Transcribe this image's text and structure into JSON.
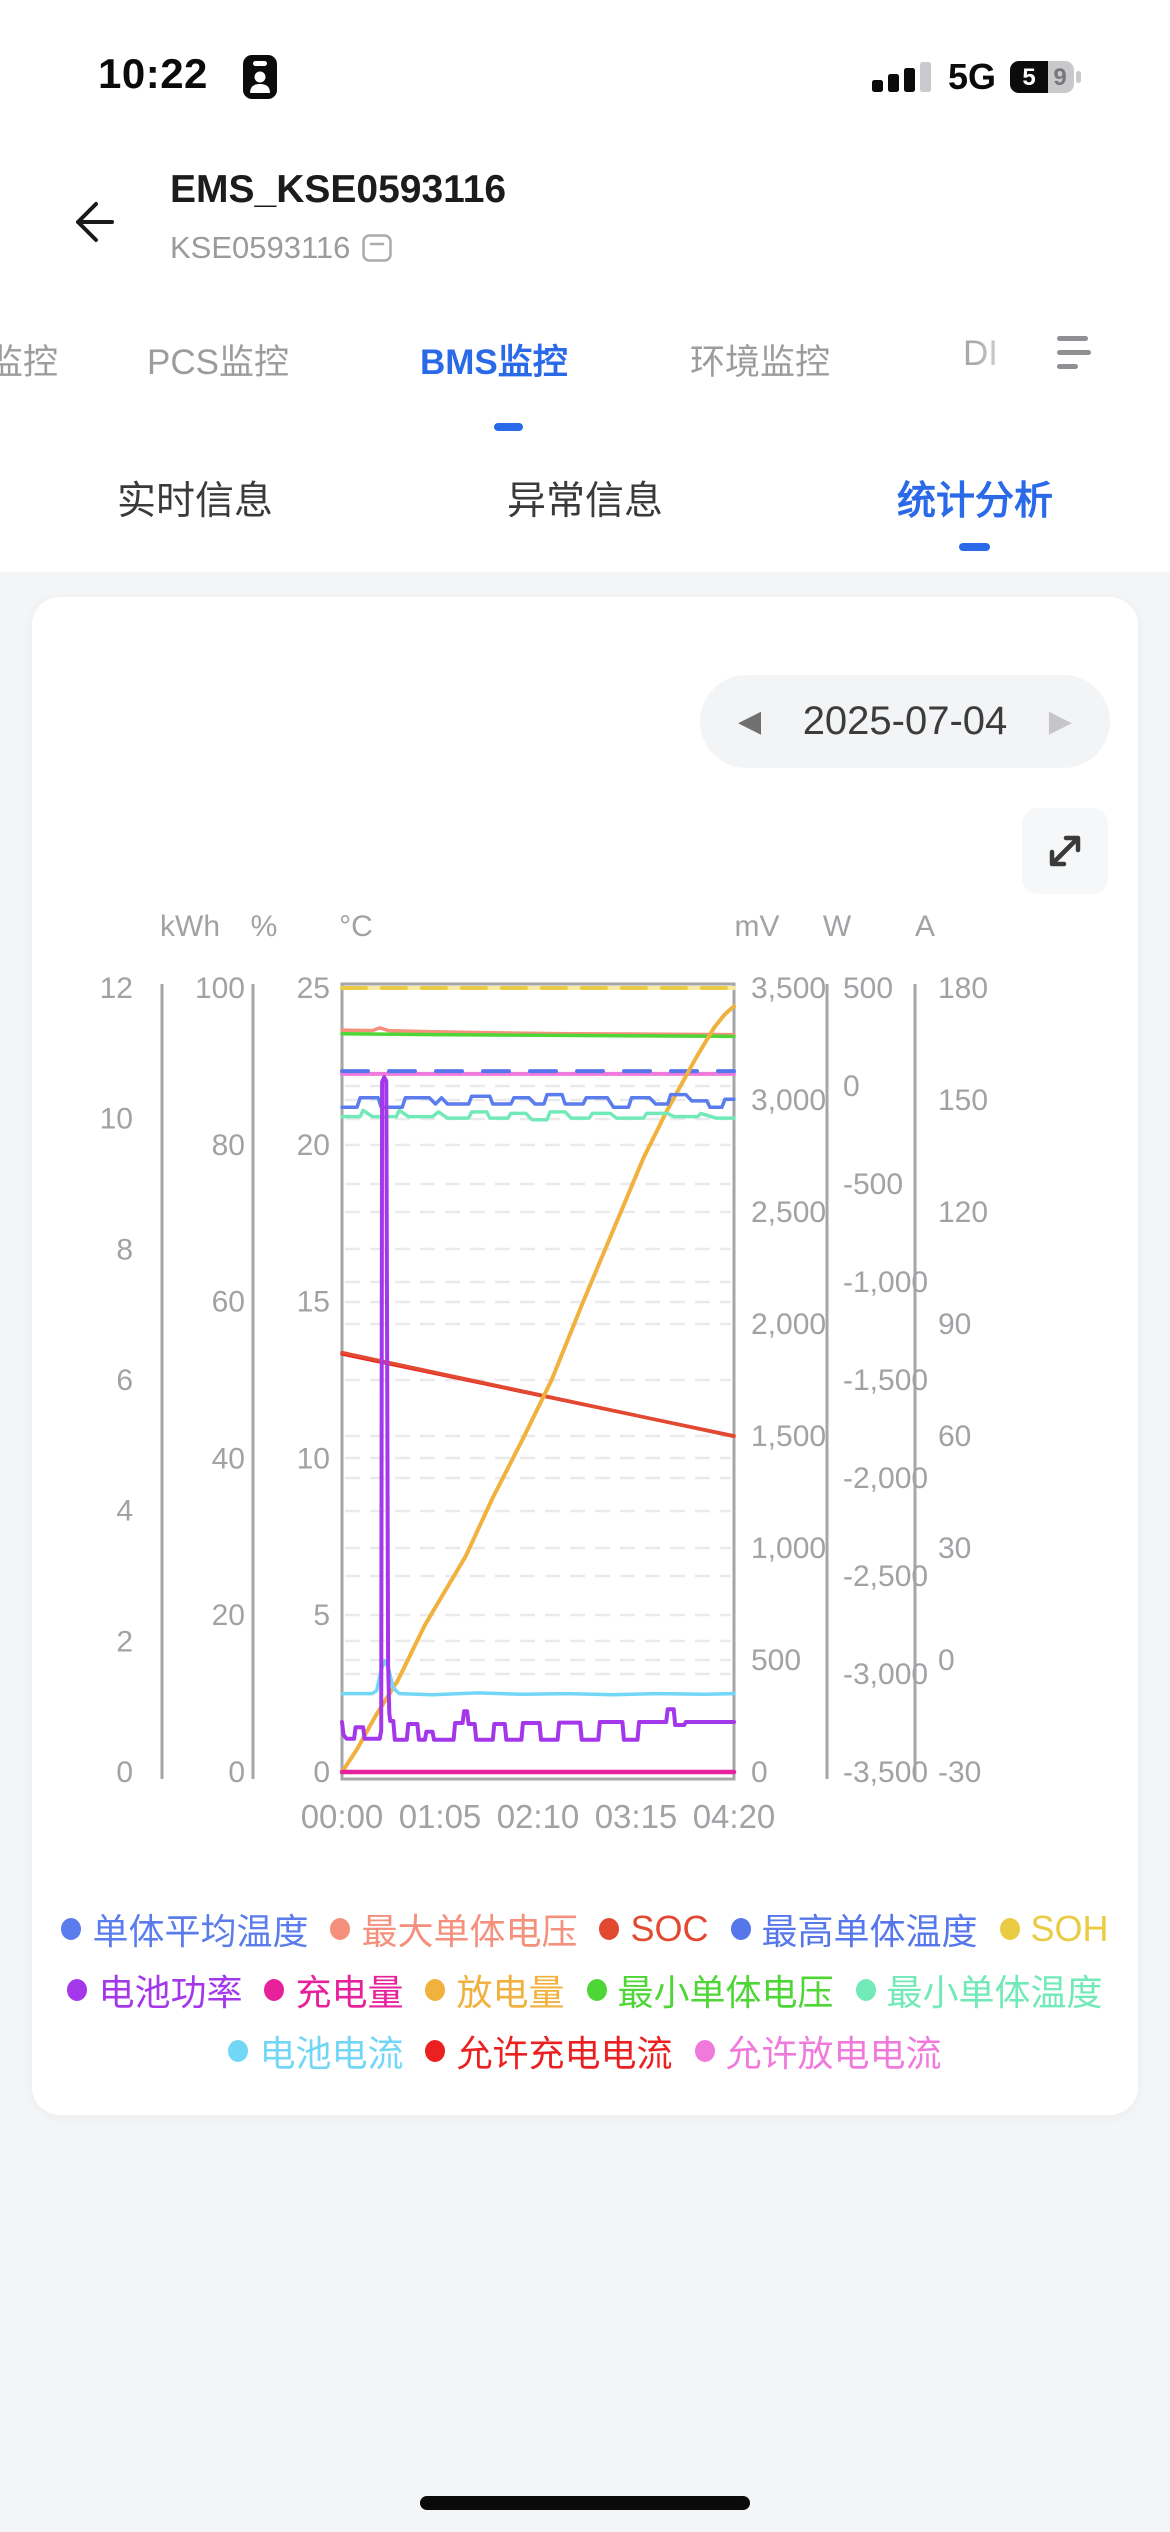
{
  "status_bar": {
    "time": "10:22",
    "carrier": "5G",
    "battery_percent": "59"
  },
  "header": {
    "title": "EMS_KSE0593116",
    "subtitle": "KSE0593116"
  },
  "tabs": {
    "items": [
      "监控",
      "PCS监控",
      "BMS监控",
      "环境监控",
      "DI"
    ],
    "active": "BMS监控"
  },
  "sub_tabs": {
    "items": [
      "实时信息",
      "异常信息",
      "统计分析"
    ],
    "active": "统计分析"
  },
  "date_picker": {
    "value": "2025-07-04",
    "prev_icon": "◀",
    "next_icon": "▶"
  },
  "icons": {
    "back": "arrow-left",
    "copy": "document-badge",
    "menu": "list-lines",
    "expand": "fullscreen-arrows",
    "focus": "person-badge"
  },
  "colors": {
    "accent": "#2a6ae8",
    "tab_inactive": "#9c9c9c",
    "axis_text": "#a0a2a5",
    "axis_line": "#a5a6a8",
    "grid": "#eaeaec",
    "page_bg": "#f4f5f6",
    "card_bg": "#ffffff"
  },
  "chart_data": {
    "type": "line",
    "title": "",
    "x_unit": "time of day",
    "x_ticks": [
      "00:00",
      "01:05",
      "02:10",
      "03:15",
      "04:20"
    ],
    "x_range_minutes": [
      0,
      260
    ],
    "unit_labels": [
      "kWh",
      "%",
      "°C",
      "mV",
      "W",
      "A"
    ],
    "grid": "dashed-horizontal",
    "legend_position": "bottom",
    "axes": [
      {
        "id": "kwh",
        "unit": "kWh",
        "min": 0,
        "max": 12,
        "ticks": [
          "12",
          "10",
          "8",
          "6",
          "4",
          "2",
          "0"
        ]
      },
      {
        "id": "pct",
        "unit": "%",
        "min": 0,
        "max": 100,
        "ticks": [
          "100",
          "80",
          "60",
          "40",
          "20",
          "0"
        ]
      },
      {
        "id": "degc",
        "unit": "°C",
        "min": 0,
        "max": 25,
        "ticks": [
          "25",
          "20",
          "15",
          "10",
          "5",
          "0"
        ]
      },
      {
        "id": "mv",
        "unit": "mV",
        "min": 0,
        "max": 3500,
        "ticks": [
          "3,500",
          "3,000",
          "2,500",
          "2,000",
          "1,500",
          "1,000",
          "500",
          "0"
        ]
      },
      {
        "id": "w",
        "unit": "W",
        "min": -3500,
        "max": 500,
        "ticks": [
          "500",
          "0",
          "-500",
          "-1,000",
          "-1,500",
          "-2,000",
          "-2,500",
          "-3,000",
          "-3,500"
        ]
      },
      {
        "id": "a",
        "unit": "A",
        "min": -30,
        "max": 180,
        "ticks": [
          "180",
          "150",
          "120",
          "90",
          "60",
          "30",
          "0",
          "-30"
        ]
      }
    ],
    "series": [
      {
        "name": "单体平均温度",
        "color": "#5b7cec",
        "axis": "degc",
        "width": 3.5,
        "points": [
          [
            0,
            21.2
          ],
          [
            10,
            21.2
          ],
          [
            12,
            21.5
          ],
          [
            24,
            21.5
          ],
          [
            26,
            21.2
          ],
          [
            40,
            21.2
          ],
          [
            42,
            21.5
          ],
          [
            58,
            21.5
          ],
          [
            62,
            21.3
          ],
          [
            66,
            21.5
          ],
          [
            70,
            21.3
          ],
          [
            84,
            21.3
          ],
          [
            86,
            21.55
          ],
          [
            98,
            21.55
          ],
          [
            100,
            21.3
          ],
          [
            112,
            21.3
          ],
          [
            114,
            21.5
          ],
          [
            124,
            21.5
          ],
          [
            128,
            21.3
          ],
          [
            134,
            21.3
          ],
          [
            136,
            21.6
          ],
          [
            146,
            21.6
          ],
          [
            148,
            21.3
          ],
          [
            160,
            21.3
          ],
          [
            162,
            21.5
          ],
          [
            176,
            21.5
          ],
          [
            180,
            21.2
          ],
          [
            190,
            21.2
          ],
          [
            192,
            21.5
          ],
          [
            204,
            21.5
          ],
          [
            208,
            21.3
          ],
          [
            216,
            21.3
          ],
          [
            218,
            21.6
          ],
          [
            228,
            21.6
          ],
          [
            232,
            21.4
          ],
          [
            242,
            21.4
          ],
          [
            244,
            21.2
          ],
          [
            252,
            21.2
          ],
          [
            254,
            21.45
          ],
          [
            260,
            21.45
          ]
        ]
      },
      {
        "name": "最大单体电压",
        "color": "#f4907c",
        "axis": "mv",
        "width": 3.5,
        "points": [
          [
            0,
            3312
          ],
          [
            20,
            3310
          ],
          [
            25,
            3322
          ],
          [
            31,
            3310
          ],
          [
            60,
            3305
          ],
          [
            100,
            3300
          ],
          [
            150,
            3296
          ],
          [
            200,
            3294
          ],
          [
            260,
            3292
          ]
        ]
      },
      {
        "name": "SOC",
        "color": "#e14a31",
        "axis": "pct",
        "width": 3.5,
        "points": [
          [
            0,
            53.5
          ],
          [
            260,
            42.8
          ]
        ]
      },
      {
        "name": "最高单体温度",
        "color": "#5577eb",
        "axis": "degc",
        "width": 4,
        "dash": "26 21",
        "points": [
          [
            0,
            22.35
          ],
          [
            260,
            22.35
          ]
        ]
      },
      {
        "name": "SOH",
        "color": "#e9cc43",
        "axis": "pct",
        "width": 4,
        "dash": "24 16",
        "base": "#f7eca1",
        "points": [
          [
            0,
            100
          ],
          [
            260,
            100
          ]
        ]
      },
      {
        "name": "电池功率",
        "color": "#a437ea",
        "axis": "w",
        "width": 4,
        "points": [
          [
            0,
            -3245
          ],
          [
            1,
            -3310
          ],
          [
            3,
            -3330
          ],
          [
            8,
            -3330
          ],
          [
            9,
            -3272
          ],
          [
            14,
            -3272
          ],
          [
            15,
            -3330
          ],
          [
            25,
            -3330
          ],
          [
            26,
            -3290
          ],
          [
            26.6,
            20
          ],
          [
            28,
            45
          ],
          [
            29.4,
            25
          ],
          [
            30.6,
            -2950
          ],
          [
            31.4,
            -3200
          ],
          [
            32,
            -3240
          ],
          [
            34,
            -3240
          ],
          [
            35,
            -3335
          ],
          [
            43,
            -3335
          ],
          [
            44,
            -3255
          ],
          [
            50,
            -3255
          ],
          [
            51,
            -3335
          ],
          [
            55,
            -3335
          ],
          [
            56,
            -3295
          ],
          [
            60,
            -3295
          ],
          [
            61,
            -3335
          ],
          [
            74,
            -3335
          ],
          [
            75,
            -3250
          ],
          [
            80,
            -3250
          ],
          [
            81,
            -3190
          ],
          [
            83,
            -3190
          ],
          [
            84,
            -3255
          ],
          [
            88,
            -3255
          ],
          [
            89,
            -3335
          ],
          [
            100,
            -3335
          ],
          [
            101,
            -3255
          ],
          [
            108,
            -3255
          ],
          [
            109,
            -3335
          ],
          [
            119,
            -3335
          ],
          [
            120,
            -3250
          ],
          [
            131,
            -3250
          ],
          [
            132,
            -3335
          ],
          [
            143,
            -3335
          ],
          [
            144,
            -3248
          ],
          [
            158,
            -3248
          ],
          [
            159,
            -3335
          ],
          [
            170,
            -3335
          ],
          [
            171,
            -3245
          ],
          [
            186,
            -3245
          ],
          [
            187,
            -3335
          ],
          [
            196,
            -3335
          ],
          [
            197,
            -3245
          ],
          [
            215,
            -3245
          ],
          [
            216,
            -3180
          ],
          [
            220,
            -3180
          ],
          [
            221,
            -3260
          ],
          [
            227,
            -3260
          ],
          [
            228,
            -3245
          ],
          [
            260,
            -3245
          ]
        ]
      },
      {
        "name": "充电量",
        "color": "#e7219c",
        "axis": "kwh",
        "width": 4.5,
        "points": [
          [
            0,
            0
          ],
          [
            260,
            0
          ]
        ]
      },
      {
        "name": "放电量",
        "color": "#f1b13f",
        "axis": "kwh",
        "width": 4,
        "points": [
          [
            0,
            0
          ],
          [
            10,
            0.35
          ],
          [
            22,
            0.85
          ],
          [
            37,
            1.4
          ],
          [
            55,
            2.25
          ],
          [
            82,
            3.3
          ],
          [
            100,
            4.2
          ],
          [
            120,
            5.1
          ],
          [
            139,
            6.0
          ],
          [
            160,
            7.2
          ],
          [
            180,
            8.3
          ],
          [
            200,
            9.4
          ],
          [
            215,
            10.1
          ],
          [
            234,
            10.9
          ],
          [
            247,
            11.4
          ],
          [
            254,
            11.6
          ],
          [
            260,
            11.72
          ]
        ]
      },
      {
        "name": "最小单体电压",
        "color": "#4ed636",
        "axis": "mv",
        "width": 3.5,
        "points": [
          [
            0,
            3296
          ],
          [
            60,
            3292
          ],
          [
            130,
            3289
          ],
          [
            200,
            3286
          ],
          [
            260,
            3284
          ]
        ]
      },
      {
        "name": "最小单体温度",
        "color": "#72e9b8",
        "axis": "degc",
        "width": 3.5,
        "points": [
          [
            0,
            20.9
          ],
          [
            12,
            20.9
          ],
          [
            14,
            21.1
          ],
          [
            20,
            20.9
          ],
          [
            36,
            20.9
          ],
          [
            38,
            21.1
          ],
          [
            44,
            20.9
          ],
          [
            60,
            20.9
          ],
          [
            64,
            21.05
          ],
          [
            70,
            20.85
          ],
          [
            84,
            20.85
          ],
          [
            86,
            21.05
          ],
          [
            96,
            21.05
          ],
          [
            98,
            20.85
          ],
          [
            110,
            20.85
          ],
          [
            112,
            21.0
          ],
          [
            122,
            21.0
          ],
          [
            126,
            20.8
          ],
          [
            136,
            20.8
          ],
          [
            138,
            21.05
          ],
          [
            148,
            21.05
          ],
          [
            152,
            20.85
          ],
          [
            164,
            20.85
          ],
          [
            166,
            21.0
          ],
          [
            178,
            21.0
          ],
          [
            182,
            20.85
          ],
          [
            200,
            20.85
          ],
          [
            202,
            21.0
          ],
          [
            216,
            21.0
          ],
          [
            220,
            20.9
          ],
          [
            236,
            20.9
          ],
          [
            238,
            21.0
          ],
          [
            248,
            20.85
          ],
          [
            260,
            20.85
          ]
        ]
      },
      {
        "name": "电池电流",
        "color": "#72d6f6",
        "axis": "a",
        "width": 3.5,
        "points": [
          [
            0,
            -9
          ],
          [
            20,
            -9
          ],
          [
            23,
            -8.2
          ],
          [
            26,
            -2.5
          ],
          [
            28.5,
            -0.2
          ],
          [
            31,
            -2.5
          ],
          [
            34,
            -7.5
          ],
          [
            38,
            -9
          ],
          [
            60,
            -9.3
          ],
          [
            90,
            -8.8
          ],
          [
            120,
            -9.2
          ],
          [
            150,
            -9
          ],
          [
            180,
            -9.3
          ],
          [
            210,
            -9
          ],
          [
            240,
            -9.2
          ],
          [
            260,
            -9
          ]
        ]
      },
      {
        "name": "允许充电电流",
        "color": "#eb2121",
        "axis": "a",
        "width": 3.5,
        "points": [
          [
            0,
            82
          ],
          [
            260,
            60
          ]
        ]
      },
      {
        "name": "允许放电电流",
        "color": "#f07adc",
        "axis": "a",
        "width": 4,
        "points": [
          [
            0,
            157
          ],
          [
            260,
            157
          ]
        ]
      }
    ],
    "draw_order": [
      "允许充电电流",
      "SOC",
      "最大单体电压",
      "最小单体电压",
      "允许放电电流",
      "最高单体温度",
      "SOH",
      "放电量",
      "电池电流",
      "最小单体温度",
      "单体平均温度",
      "充电量",
      "电池功率"
    ],
    "legend_rows": [
      [
        "单体平均温度",
        "最大单体电压",
        "SOC",
        "最高单体温度",
        "SOH"
      ],
      [
        "电池功率",
        "充电量",
        "放电量",
        "最小单体电压",
        "最小单体温度"
      ],
      [
        "电池电流",
        "允许充电电流",
        "允许放电电流"
      ]
    ]
  }
}
